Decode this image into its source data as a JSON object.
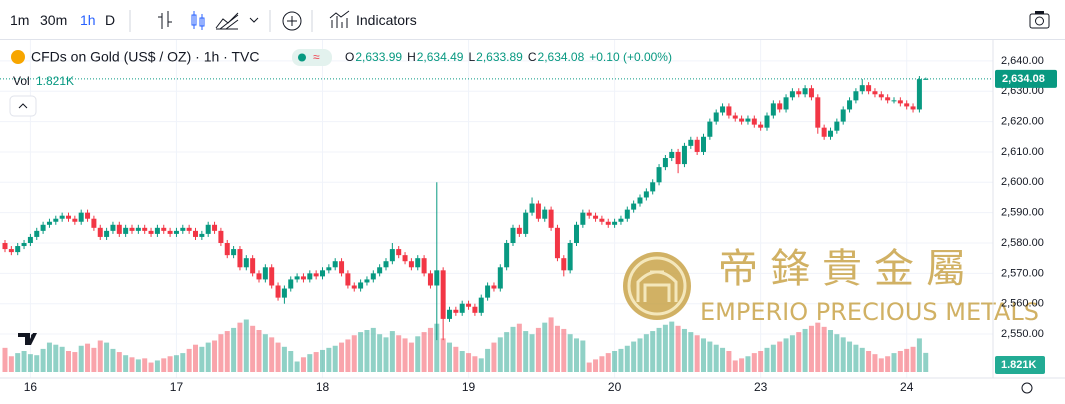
{
  "toolbar": {
    "intervals": [
      "1m",
      "30m",
      "1h",
      "D"
    ],
    "indicators": "Indicators"
  },
  "legend": {
    "symbol": "CFDs on Gold (US$ / OZ) · 1h · TVC",
    "ohlc": [
      {
        "key": "O",
        "value": "2,633.99"
      },
      {
        "key": "H",
        "value": "2,634.49"
      },
      {
        "key": "L",
        "value": "2,633.89"
      },
      {
        "key": "C",
        "value": "2,634.08"
      }
    ],
    "change": "+0.10 (+0.00%)",
    "volume_title": "Vol",
    "volume_label": "1.821K"
  },
  "watermark": {
    "chinese": "帝鋒貴金屬",
    "english": "EMPERIO PRECIOUS METALS"
  },
  "chart_data": {
    "type": "candlestick",
    "up_color": "#089981",
    "down_color": "#f23645",
    "grid": true,
    "categories": [
      null,
      null,
      null,
      null,
      "16",
      null,
      null,
      null,
      null,
      null,
      null,
      null,
      null,
      null,
      null,
      null,
      null,
      null,
      null,
      null,
      null,
      null,
      null,
      null,
      null,
      null,
      null,
      "17",
      null,
      null,
      null,
      null,
      null,
      null,
      null,
      null,
      null,
      null,
      null,
      null,
      null,
      null,
      null,
      null,
      null,
      null,
      null,
      null,
      null,
      null,
      "18",
      null,
      null,
      null,
      null,
      null,
      null,
      null,
      null,
      null,
      null,
      null,
      null,
      null,
      null,
      null,
      null,
      null,
      null,
      null,
      null,
      null,
      null,
      "19",
      null,
      null,
      null,
      null,
      null,
      null,
      null,
      null,
      null,
      null,
      null,
      null,
      null,
      null,
      null,
      null,
      null,
      null,
      null,
      null,
      null,
      null,
      "20",
      null,
      null,
      null,
      null,
      null,
      null,
      null,
      null,
      null,
      null,
      null,
      null,
      null,
      null,
      null,
      null,
      null,
      null,
      null,
      null,
      null,
      null,
      "23",
      null,
      null,
      null,
      null,
      null,
      null,
      null,
      null,
      null,
      null,
      null,
      null,
      null,
      null,
      null,
      null,
      null,
      null,
      null,
      null,
      null,
      null,
      "24",
      null,
      null,
      null
    ],
    "open": [
      2580,
      2578,
      2577,
      2579,
      2580,
      2582,
      2584,
      2586,
      2587,
      2588,
      2589,
      2588,
      2587,
      2590,
      2588,
      2585,
      2582,
      2584,
      2586,
      2583,
      2585,
      2584,
      2585,
      2584,
      2583,
      2585,
      2584,
      2583,
      2584,
      2585,
      2584,
      2582,
      2583,
      2586,
      2584,
      2580,
      2576,
      2578,
      2572,
      2575,
      2570,
      2568,
      2572,
      2566,
      2562,
      2565,
      2568,
      2569,
      2568,
      2570,
      2569,
      2571,
      2572,
      2574,
      2570,
      2566,
      2565,
      2567,
      2568,
      2570,
      2572,
      2574,
      2578,
      2576,
      2574,
      2572,
      2575,
      2570,
      2566,
      2571,
      2555,
      2558,
      2557,
      2560,
      2559,
      2557,
      2562,
      2566,
      2565,
      2572,
      2580,
      2585,
      2583,
      2590,
      2593,
      2588,
      2591,
      2585,
      2575,
      2571,
      2580,
      2586,
      2590,
      2589,
      2588,
      2587,
      2586,
      2587,
      2588,
      2591,
      2593,
      2595,
      2597,
      2600,
      2605,
      2608,
      2610,
      2606,
      2612,
      2614,
      2610,
      2615,
      2620,
      2623,
      2625,
      2622,
      2621,
      2620,
      2621,
      2619,
      2618,
      2622,
      2626,
      2624,
      2628,
      2630,
      2629,
      2631,
      2628,
      2618,
      2615,
      2617,
      2620,
      2624,
      2627,
      2630,
      2632,
      2630,
      2629,
      2628,
      2627,
      2627,
      2626,
      2625,
      2624,
      2633.99
    ],
    "high": [
      2581,
      2579,
      2580,
      2581,
      2583,
      2585,
      2587,
      2588,
      2589,
      2590,
      2590,
      2589,
      2591,
      2591,
      2589,
      2586,
      2585,
      2587,
      2587,
      2586,
      2586,
      2586,
      2586,
      2585,
      2586,
      2586,
      2585,
      2585,
      2586,
      2586,
      2585,
      2584,
      2587,
      2587,
      2585,
      2581,
      2579,
      2579,
      2576,
      2576,
      2571,
      2573,
      2573,
      2567,
      2566,
      2569,
      2570,
      2570,
      2571,
      2571,
      2572,
      2573,
      2575,
      2575,
      2571,
      2567,
      2568,
      2569,
      2571,
      2573,
      2575,
      2580,
      2579,
      2577,
      2575,
      2576,
      2576,
      2571,
      2600,
      2572,
      2559,
      2559,
      2561,
      2561,
      2560,
      2563,
      2567,
      2567,
      2573,
      2581,
      2586,
      2586,
      2591,
      2595,
      2594,
      2592,
      2592,
      2586,
      2576,
      2581,
      2587,
      2591,
      2591,
      2590,
      2589,
      2588,
      2588,
      2589,
      2592,
      2594,
      2596,
      2598,
      2601,
      2606,
      2609,
      2611,
      2611,
      2613,
      2615,
      2615,
      2616,
      2621,
      2624,
      2626,
      2626,
      2623,
      2622,
      2622,
      2622,
      2620,
      2623,
      2627,
      2627,
      2629,
      2631,
      2631,
      2632,
      2632,
      2629,
      2619,
      2618,
      2621,
      2625,
      2628,
      2631,
      2634,
      2633,
      2631,
      2630,
      2629,
      2628,
      2628,
      2627,
      2626,
      2635,
      2634.49
    ],
    "low": [
      2577,
      2576,
      2576,
      2578,
      2579,
      2581,
      2583,
      2585,
      2586,
      2587,
      2587,
      2586,
      2586,
      2587,
      2584,
      2581,
      2581,
      2583,
      2582,
      2582,
      2583,
      2583,
      2583,
      2582,
      2582,
      2583,
      2582,
      2582,
      2583,
      2583,
      2581,
      2581,
      2582,
      2583,
      2579,
      2575,
      2575,
      2571,
      2571,
      2569,
      2567,
      2567,
      2565,
      2561,
      2560,
      2564,
      2567,
      2567,
      2567,
      2568,
      2568,
      2570,
      2571,
      2569,
      2565,
      2564,
      2564,
      2566,
      2567,
      2569,
      2571,
      2573,
      2575,
      2573,
      2571,
      2571,
      2569,
      2565,
      2548,
      2548,
      2554,
      2556,
      2556,
      2558,
      2556,
      2556,
      2561,
      2564,
      2564,
      2571,
      2579,
      2582,
      2582,
      2589,
      2587,
      2587,
      2584,
      2574,
      2569,
      2570,
      2579,
      2585,
      2588,
      2587,
      2586,
      2585,
      2585,
      2586,
      2587,
      2590,
      2592,
      2594,
      2596,
      2599,
      2604,
      2607,
      2603,
      2605,
      2611,
      2609,
      2609,
      2614,
      2619,
      2622,
      2621,
      2620,
      2619,
      2619,
      2618,
      2617,
      2617,
      2621,
      2623,
      2623,
      2627,
      2628,
      2628,
      2627,
      2616,
      2614,
      2614,
      2616,
      2619,
      2623,
      2626,
      2629,
      2629,
      2628,
      2627,
      2626,
      2626,
      2625,
      2624,
      2623,
      2623,
      2633.89
    ],
    "close": [
      2578,
      2577,
      2579,
      2580,
      2582,
      2584,
      2586,
      2587,
      2588,
      2589,
      2588,
      2587,
      2590,
      2588,
      2585,
      2582,
      2584,
      2586,
      2583,
      2585,
      2584,
      2585,
      2584,
      2583,
      2585,
      2584,
      2583,
      2584,
      2585,
      2584,
      2582,
      2583,
      2586,
      2584,
      2580,
      2576,
      2578,
      2572,
      2575,
      2570,
      2568,
      2572,
      2566,
      2562,
      2565,
      2568,
      2569,
      2568,
      2570,
      2569,
      2571,
      2572,
      2574,
      2570,
      2566,
      2565,
      2567,
      2568,
      2570,
      2572,
      2574,
      2578,
      2576,
      2574,
      2572,
      2575,
      2570,
      2566,
      2571,
      2555,
      2558,
      2557,
      2560,
      2559,
      2557,
      2562,
      2566,
      2565,
      2572,
      2580,
      2585,
      2583,
      2590,
      2593,
      2588,
      2591,
      2585,
      2575,
      2571,
      2580,
      2586,
      2590,
      2589,
      2588,
      2587,
      2586,
      2587,
      2588,
      2591,
      2593,
      2595,
      2597,
      2600,
      2605,
      2608,
      2610,
      2606,
      2612,
      2614,
      2610,
      2615,
      2620,
      2623,
      2625,
      2622,
      2621,
      2620,
      2621,
      2619,
      2618,
      2622,
      2626,
      2624,
      2628,
      2630,
      2629,
      2631,
      2628,
      2618,
      2615,
      2617,
      2620,
      2624,
      2627,
      2630,
      2632,
      2630,
      2629,
      2628,
      2627,
      2627,
      2626,
      2625,
      2624,
      2633.99,
      2634.08
    ],
    "volume": [
      2300,
      1500,
      1800,
      2000,
      1700,
      1600,
      2200,
      2800,
      2600,
      2400,
      2000,
      1900,
      2500,
      2700,
      2300,
      3000,
      2800,
      2200,
      1900,
      1600,
      1400,
      1200,
      1300,
      900,
      1100,
      1300,
      1500,
      1600,
      1800,
      2200,
      2600,
      2400,
      2800,
      3000,
      3600,
      3900,
      4200,
      4700,
      5000,
      4400,
      4000,
      3600,
      3300,
      2800,
      2400,
      2000,
      1000,
      1400,
      1700,
      1900,
      2100,
      2300,
      2500,
      2800,
      3100,
      3500,
      3800,
      4000,
      4200,
      3600,
      3300,
      3900,
      3500,
      3200,
      2800,
      3400,
      3800,
      4200,
      4600,
      3200,
      2800,
      2400,
      2000,
      1800,
      1500,
      1300,
      2200,
      2800,
      3300,
      3800,
      4300,
      4600,
      3900,
      3600,
      4200,
      4700,
      5200,
      4400,
      4100,
      3600,
      3200,
      3000,
      900,
      1200,
      1500,
      1800,
      2000,
      2200,
      2500,
      2900,
      3200,
      3600,
      3900,
      4200,
      4500,
      4800,
      4400,
      4100,
      3800,
      3500,
      3200,
      2900,
      2600,
      2300,
      2000,
      1100,
      1300,
      1500,
      1800,
      2000,
      2300,
      2600,
      2900,
      3200,
      3500,
      3800,
      4100,
      4400,
      4700,
      4300,
      4000,
      3600,
      3300,
      2900,
      2600,
      2300,
      2000,
      1700,
      1300,
      1500,
      1800,
      2000,
      2200,
      2400,
      3200,
      1821
    ],
    "ylim": [
      2537.5,
      2648.2
    ],
    "yticks": [
      {
        "value": 2550,
        "label": "2,550.00"
      },
      {
        "value": 2560,
        "label": "2,560.00"
      },
      {
        "value": 2570,
        "label": "2,570.00"
      },
      {
        "value": 2580,
        "label": "2,580.00"
      },
      {
        "value": 2590,
        "label": "2,590.00"
      },
      {
        "value": 2600,
        "label": "2,600.00"
      },
      {
        "value": 2610,
        "label": "2,610.00"
      },
      {
        "value": 2620,
        "label": "2,620.00"
      },
      {
        "value": 2630,
        "label": "2,630.00"
      },
      {
        "value": 2640,
        "label": "2,640.00"
      }
    ],
    "last_price": {
      "value": 2634.08,
      "label": "2,634.08"
    }
  }
}
